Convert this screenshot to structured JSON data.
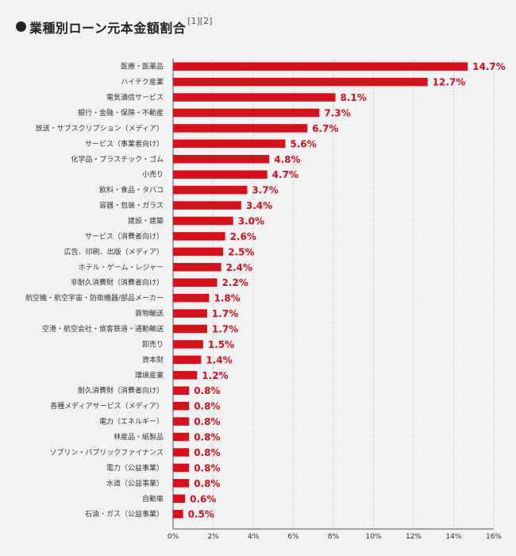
{
  "title": "業種別ローン元本金額割合",
  "title_note": "[1][2]",
  "colors": {
    "bar": "#d6101d",
    "grid": "#c8c8c8",
    "text": "#333333"
  },
  "chart_data": {
    "type": "bar",
    "orientation": "horizontal",
    "title": "業種別ローン元本金額割合",
    "categories": [
      "医療・医薬品",
      "ハイテク産業",
      "電気通信サービス",
      "銀行・金融・保険・不動産",
      "放送・サブスクリプション（メディア）",
      "サービス（事業者向け）",
      "化学品・プラスチック・ゴム",
      "小売り",
      "飲料・食品・タバコ",
      "容器・包装・ガラス",
      "建設・建築",
      "サービス（消費者向け）",
      "広告、印刷、出版（メディア）",
      "ホテル・ゲーム・レジャー",
      "非耐久消費財（消費者向け）",
      "航空機・航空宇宙・防衛機器/部品メーカー",
      "貨物輸送",
      "空港・航空会社・旅客鉄道・通勤輸送",
      "卸売り",
      "資本財",
      "環境産業",
      "耐久消費財（消費者向け）",
      "各種メディアサービス（メディア）",
      "電力（エネルギー）",
      "林産品・紙製品",
      "ソブリン・パブリックファイナンス",
      "電力（公益事業）",
      "水道（公益事業）",
      "自動車",
      "石油・ガス（公益事業）"
    ],
    "values": [
      14.7,
      12.7,
      8.1,
      7.3,
      6.7,
      5.6,
      4.8,
      4.7,
      3.7,
      3.4,
      3.0,
      2.6,
      2.5,
      2.4,
      2.2,
      1.8,
      1.7,
      1.7,
      1.5,
      1.4,
      1.2,
      0.8,
      0.8,
      0.8,
      0.8,
      0.8,
      0.8,
      0.8,
      0.6,
      0.5
    ],
    "value_labels": [
      "14.7%",
      "12.7%",
      "8.1%",
      "7.3%",
      "6.7%",
      "5.6%",
      "4.8%",
      "4.7%",
      "3.7%",
      "3.4%",
      "3.0%",
      "2.6%",
      "2.5%",
      "2.4%",
      "2.2%",
      "1.8%",
      "1.7%",
      "1.7%",
      "1.5%",
      "1.4%",
      "1.2%",
      "0.8%",
      "0.8%",
      "0.8%",
      "0.8%",
      "0.8%",
      "0.8%",
      "0.8%",
      "0.6%",
      "0.5%"
    ],
    "xlim": [
      0,
      16
    ],
    "x_ticks": [
      "0%",
      "2%",
      "4%",
      "6%",
      "8%",
      "10%",
      "12%",
      "14%",
      "16%"
    ],
    "grid": true,
    "legend": "none"
  }
}
